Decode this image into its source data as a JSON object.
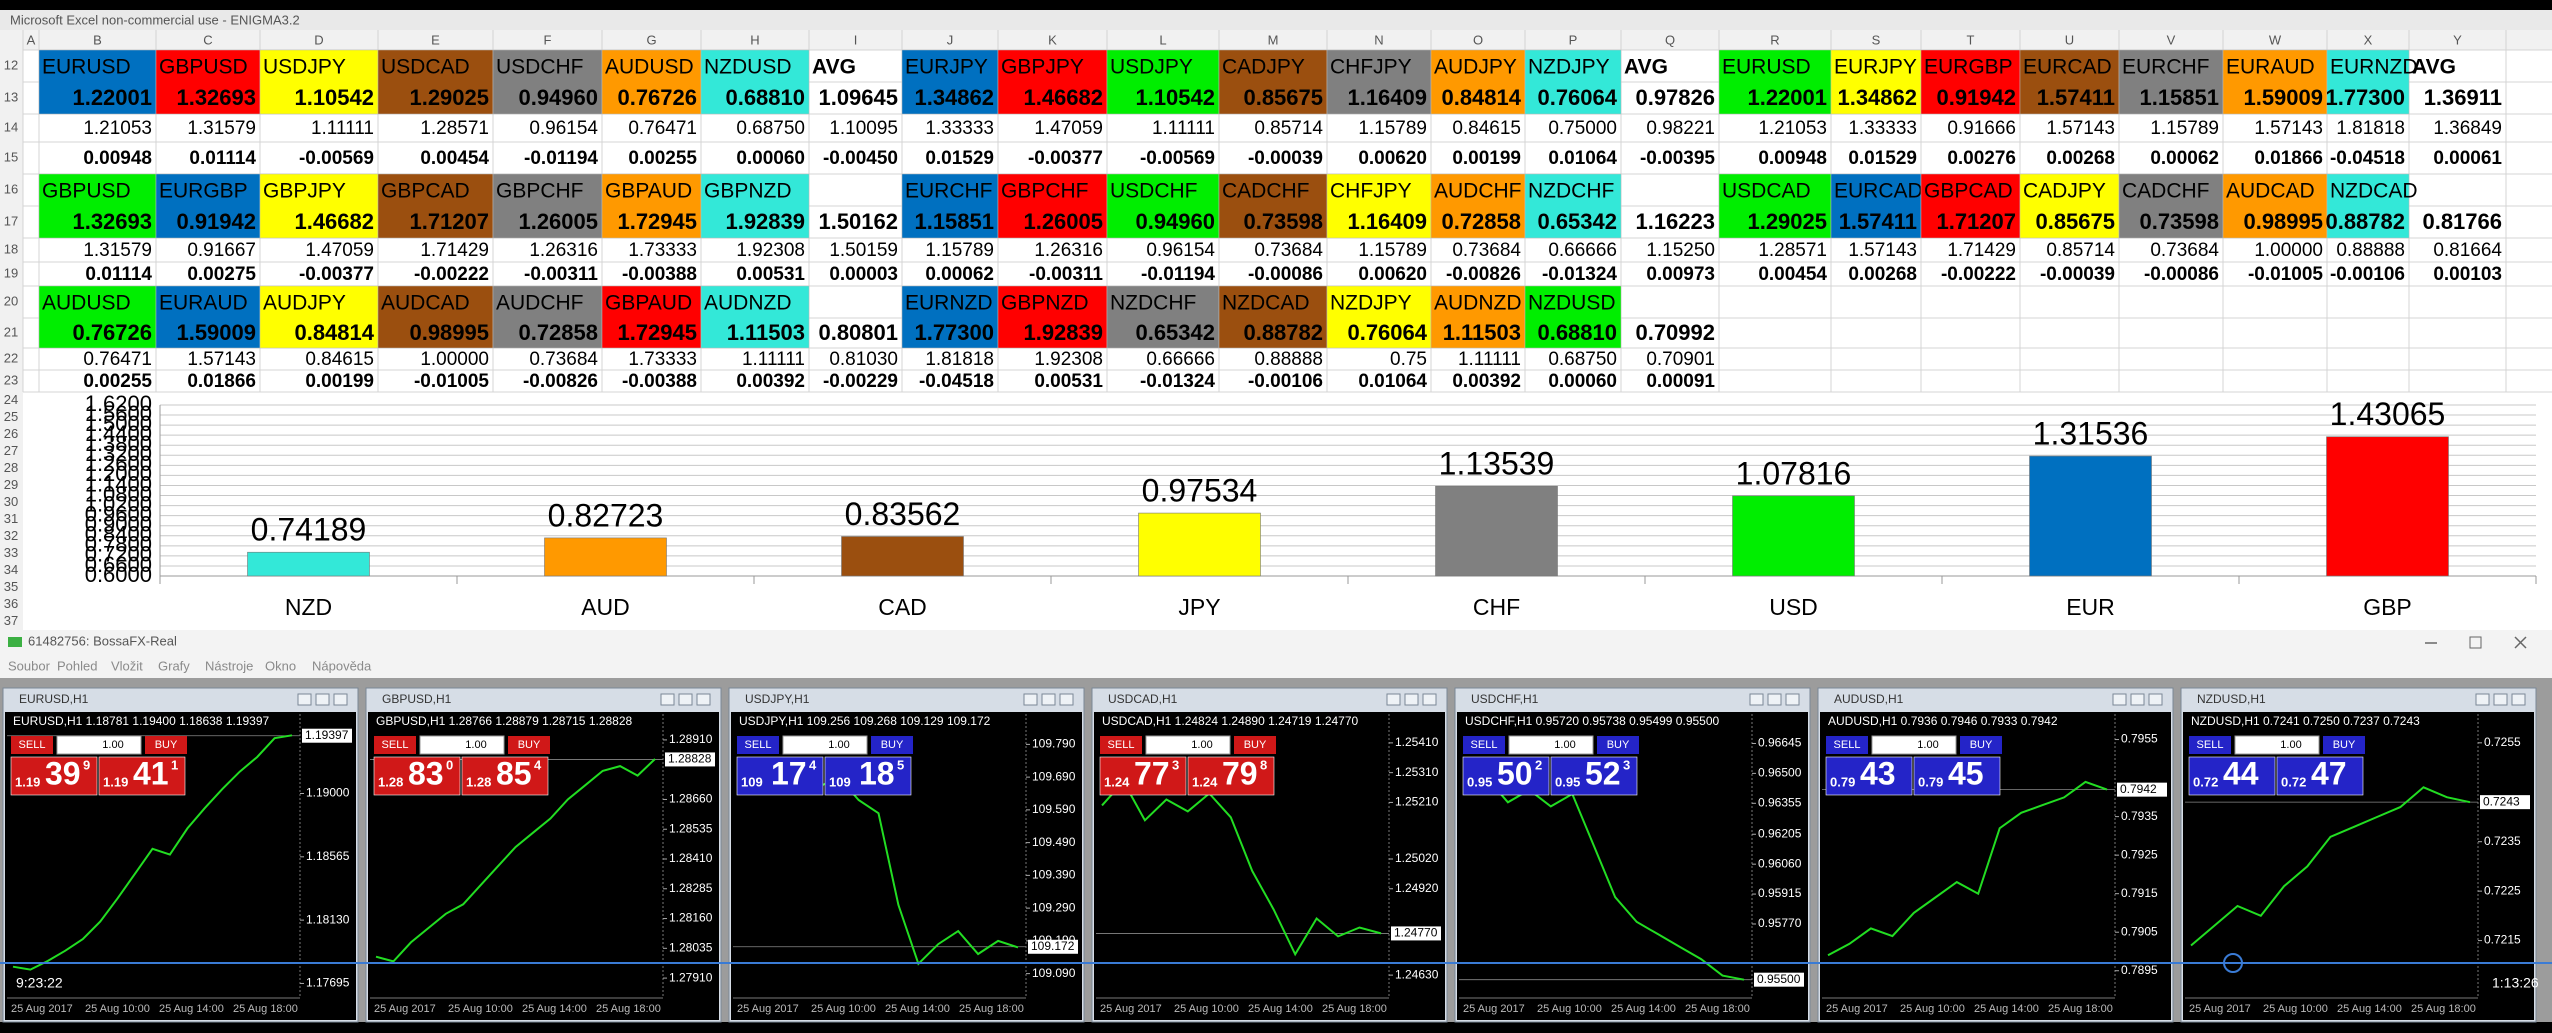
{
  "excel": {
    "title": "Microsoft Excel non-commercial use - ENIGMA3.2",
    "columns": [
      "A",
      "B",
      "C",
      "D",
      "E",
      "F",
      "G",
      "H",
      "I",
      "J",
      "K",
      "L",
      "M",
      "N",
      "O",
      "P",
      "Q",
      "R",
      "S",
      "T",
      "U",
      "V",
      "W",
      "X",
      "Y"
    ],
    "rows": [
      12,
      13,
      14,
      15,
      16,
      17,
      18,
      19,
      20,
      21,
      22,
      23,
      24,
      25,
      26,
      27,
      28,
      29,
      30,
      31,
      32,
      33,
      34,
      35,
      36,
      37
    ],
    "blocks": [
      {
        "pairs": [
          "EURUSD",
          "GBPUSD",
          "USDJPY",
          "USDCAD",
          "USDCHF",
          "AUDUSD",
          "NZDUSD"
        ],
        "colors": [
          "#0070c0",
          "#ff0000",
          "#ffff00",
          "#9b4f0f",
          "#808080",
          "#ff9900",
          "#33e8d8"
        ],
        "avg": "AVG",
        "rows": [
          [
            "1.22001",
            "1.32693",
            "1.10542",
            "1.29025",
            "0.94960",
            "0.76726",
            "0.68810",
            "1.09645"
          ],
          [
            "1.21053",
            "1.31579",
            "1.11111",
            "1.28571",
            "0.96154",
            "0.76471",
            "0.68750",
            "1.10095"
          ],
          [
            "0.00948",
            "0.01114",
            "-0.00569",
            "0.00454",
            "-0.01194",
            "0.00255",
            "0.00060",
            "-0.00450"
          ]
        ]
      },
      {
        "pairs": [
          "EURJPY",
          "GBPJPY",
          "USDJPY",
          "CADJPY",
          "CHFJPY",
          "AUDJPY",
          "NZDJPY"
        ],
        "colors": [
          "#0070c0",
          "#ff0000",
          "#00ee00",
          "#9b4f0f",
          "#808080",
          "#ff9900",
          "#33e8d8"
        ],
        "avg": "AVG",
        "rows": [
          [
            "1.34862",
            "1.46682",
            "1.10542",
            "0.85675",
            "1.16409",
            "0.84814",
            "0.76064",
            "0.97826"
          ],
          [
            "1.33333",
            "1.47059",
            "1.11111",
            "0.85714",
            "1.15789",
            "0.84615",
            "0.75000",
            "0.98221"
          ],
          [
            "0.01529",
            "-0.00377",
            "-0.00569",
            "-0.00039",
            "0.00620",
            "0.00199",
            "0.01064",
            "-0.00395"
          ]
        ]
      },
      {
        "pairs": [
          "EURUSD",
          "EURJPY",
          "EURGBP",
          "EURCAD",
          "EURCHF",
          "EURAUD",
          "EURNZD"
        ],
        "colors": [
          "#00ee00",
          "#ffff00",
          "#ff0000",
          "#9b4f0f",
          "#808080",
          "#ff9900",
          "#33e8d8"
        ],
        "avg": "AVG",
        "rows": [
          [
            "1.22001",
            "1.34862",
            "0.91942",
            "1.57411",
            "1.15851",
            "1.59009",
            "1.77300",
            "1.36911"
          ],
          [
            "1.21053",
            "1.33333",
            "0.91666",
            "1.57143",
            "1.15789",
            "1.57143",
            "1.81818",
            "1.36849"
          ],
          [
            "0.00948",
            "0.01529",
            "0.00276",
            "0.00268",
            "0.00062",
            "0.01866",
            "-0.04518",
            "0.00061"
          ]
        ]
      },
      {
        "pairs": [
          "GBPUSD",
          "EURGBP",
          "GBPJPY",
          "GBPCAD",
          "GBPCHF",
          "GBPAUD",
          "GBPNZD"
        ],
        "colors": [
          "#00ee00",
          "#0070c0",
          "#ffff00",
          "#9b4f0f",
          "#808080",
          "#ff9900",
          "#33e8d8"
        ],
        "rows": [
          [
            "1.32693",
            "0.91942",
            "1.46682",
            "1.71207",
            "1.26005",
            "1.72945",
            "1.92839",
            "1.50162"
          ],
          [
            "1.31579",
            "0.91667",
            "1.47059",
            "1.71429",
            "1.26316",
            "1.73333",
            "1.92308",
            "1.50159"
          ],
          [
            "0.01114",
            "0.00275",
            "-0.00377",
            "-0.00222",
            "-0.00311",
            "-0.00388",
            "0.00531",
            "0.00003"
          ]
        ]
      },
      {
        "pairs": [
          "EURCHF",
          "GBPCHF",
          "USDCHF",
          "CADCHF",
          "CHFJPY",
          "AUDCHF",
          "NZDCHF"
        ],
        "colors": [
          "#0070c0",
          "#ff0000",
          "#00ee00",
          "#9b4f0f",
          "#ffff00",
          "#ff9900",
          "#33e8d8"
        ],
        "rows": [
          [
            "1.15851",
            "1.26005",
            "0.94960",
            "0.73598",
            "1.16409",
            "0.72858",
            "0.65342",
            "1.16223"
          ],
          [
            "1.15789",
            "1.26316",
            "0.96154",
            "0.73684",
            "1.15789",
            "0.73684",
            "0.66666",
            "1.15250"
          ],
          [
            "0.00062",
            "-0.00311",
            "-0.01194",
            "-0.00086",
            "0.00620",
            "-0.00826",
            "-0.01324",
            "0.00973"
          ]
        ]
      },
      {
        "pairs": [
          "USDCAD",
          "EURCAD",
          "GBPCAD",
          "CADJPY",
          "CADCHF",
          "AUDCAD",
          "NZDCAD"
        ],
        "colors": [
          "#00ee00",
          "#0070c0",
          "#ff0000",
          "#ffff00",
          "#808080",
          "#ff9900",
          "#33e8d8"
        ],
        "rows": [
          [
            "1.29025",
            "1.57411",
            "1.71207",
            "0.85675",
            "0.73598",
            "0.98995",
            "0.88782",
            "0.81766"
          ],
          [
            "1.28571",
            "1.57143",
            "1.71429",
            "0.85714",
            "0.73684",
            "1.00000",
            "0.88888",
            "0.81664"
          ],
          [
            "0.00454",
            "0.00268",
            "-0.00222",
            "-0.00039",
            "-0.00086",
            "-0.01005",
            "-0.00106",
            "0.00103"
          ]
        ]
      },
      {
        "pairs": [
          "AUDUSD",
          "EURAUD",
          "AUDJPY",
          "AUDCAD",
          "AUDCHF",
          "GBPAUD",
          "AUDNZD"
        ],
        "colors": [
          "#00ee00",
          "#0070c0",
          "#ffff00",
          "#9b4f0f",
          "#808080",
          "#ff0000",
          "#33e8d8"
        ],
        "rows": [
          [
            "0.76726",
            "1.59009",
            "0.84814",
            "0.98995",
            "0.72858",
            "1.72945",
            "1.11503",
            "0.80801"
          ],
          [
            "0.76471",
            "1.57143",
            "0.84615",
            "1.00000",
            "0.73684",
            "1.73333",
            "1.11111",
            "0.81030"
          ],
          [
            "0.00255",
            "0.01866",
            "0.00199",
            "-0.01005",
            "-0.00826",
            "-0.00388",
            "0.00392",
            "-0.00229"
          ]
        ]
      },
      {
        "pairs": [
          "EURNZD",
          "GBPNZD",
          "NZDCHF",
          "NZDCAD",
          "NZDJPY",
          "AUDNZD",
          "NZDUSD"
        ],
        "colors": [
          "#0070c0",
          "#ff0000",
          "#808080",
          "#9b4f0f",
          "#ffff00",
          "#ff9900",
          "#00ee00"
        ],
        "rows": [
          [
            "1.77300",
            "1.92839",
            "0.65342",
            "0.88782",
            "0.76064",
            "1.11503",
            "0.68810",
            "0.70992"
          ],
          [
            "1.81818",
            "1.92308",
            "0.66666",
            "0.88888",
            "0.75",
            "1.11111",
            "0.68750",
            "0.70901"
          ],
          [
            "-0.04518",
            "0.00531",
            "-0.01324",
            "-0.00106",
            "0.01064",
            "0.00392",
            "0.00060",
            "0.00091"
          ]
        ]
      }
    ]
  },
  "chart_data": {
    "type": "bar",
    "categories": [
      "NZD",
      "AUD",
      "CAD",
      "JPY",
      "CHF",
      "USD",
      "EUR",
      "GBP"
    ],
    "values": [
      0.74189,
      0.82723,
      0.83562,
      0.97534,
      1.13539,
      1.07816,
      1.31536,
      1.43065
    ],
    "colors": [
      "#33e8d8",
      "#ff9900",
      "#9b4f0f",
      "#ffff00",
      "#808080",
      "#00ee00",
      "#0070c0",
      "#ff0000"
    ],
    "ylim": [
      0.6,
      1.62
    ],
    "yticks": [
      {
        "value": 0.6,
        "label": "0.6000"
      },
      {
        "value": 0.66,
        "label": "0.6600"
      },
      {
        "value": 0.72,
        "label": "0.7200"
      },
      {
        "value": 0.78,
        "label": "0.7800"
      },
      {
        "value": 0.84,
        "label": "0.8400"
      },
      {
        "value": 0.9,
        "label": "0.9000"
      },
      {
        "value": 0.96,
        "label": "0.9600"
      },
      {
        "value": 1.02,
        "label": "1.0200"
      },
      {
        "value": 1.08,
        "label": "1.0800"
      },
      {
        "value": 1.14,
        "label": "1.1400"
      },
      {
        "value": 1.2,
        "label": "1.2000"
      },
      {
        "value": 1.26,
        "label": "1.2600"
      },
      {
        "value": 1.32,
        "label": "1.3200"
      },
      {
        "value": 1.38,
        "label": "1.3800"
      },
      {
        "value": 1.44,
        "label": "1.4400"
      },
      {
        "value": 1.5,
        "label": "1.5000"
      },
      {
        "value": 1.56,
        "label": "1.5600"
      },
      {
        "value": 1.62,
        "label": "1.6200"
      }
    ],
    "grid": true
  },
  "terminal": {
    "title": "61482756: BossaFX-Real",
    "menu": [
      "Soubor",
      "Pohled",
      "Vložit",
      "Grafy",
      "Nástroje",
      "Okno",
      "Nápověda"
    ],
    "overlay_left": "9:23:22",
    "overlay_right": "1:13:26",
    "windows": [
      {
        "title": "EURUSD,H1",
        "info": "EURUSD,H1 1.18781 1.19400 1.18638 1.19397",
        "sell": "SELL",
        "lot": "1.00",
        "buy": "BUY",
        "panel_color": "#d01818",
        "bid": [
          "1.19",
          "39",
          "9"
        ],
        "ask": [
          "1.19",
          "41",
          "1"
        ],
        "ylim": [
          1.1765,
          1.1945
        ],
        "yticks": [
          {
            "value": 1.19,
            "label": "1.19000"
          },
          1.18565,
          {
            "value": 1.1813,
            "label": "1.18130"
          },
          1.17695
        ],
        "current": 1.19397,
        "closes": [
          1.1781,
          1.1779,
          1.1785,
          1.1792,
          1.18,
          1.1812,
          1.1828,
          1.1845,
          1.1862,
          1.1858,
          1.1876,
          1.189,
          1.1903,
          1.1915,
          1.1925,
          1.1938,
          1.194
        ],
        "xticks": [
          "25 Aug 2017",
          "25 Aug 10:00",
          "25 Aug 14:00",
          "25 Aug 18:00"
        ]
      },
      {
        "title": "GBPUSD,H1",
        "info": "GBPUSD,H1 1.28766 1.28879 1.28715 1.28828",
        "sell": "SELL",
        "lot": "1.00",
        "buy": "BUY",
        "panel_color": "#d01818",
        "bid": [
          "1.28",
          "83",
          "0"
        ],
        "ask": [
          "1.28",
          "85",
          "4"
        ],
        "ylim": [
          1.2786,
          1.2896
        ],
        "yticks": [
          {
            "value": 1.2891,
            "label": "1.28910"
          },
          {
            "value": 1.2866,
            "label": "1.28660"
          },
          1.28535,
          {
            "value": 1.2841,
            "label": "1.28410"
          },
          1.28285,
          {
            "value": 1.2816,
            "label": "1.28160"
          },
          1.28035,
          {
            "value": 1.2791,
            "label": "1.27910"
          }
        ],
        "current": 1.28828,
        "closes": [
          1.28,
          1.2798,
          1.2806,
          1.2812,
          1.2818,
          1.2822,
          1.283,
          1.2838,
          1.2846,
          1.2852,
          1.2858,
          1.2866,
          1.2872,
          1.2878,
          1.288,
          1.2876,
          1.2883
        ],
        "xticks": [
          "25 Aug 2017",
          "25 Aug 10:00",
          "25 Aug 14:00",
          "25 Aug 18:00"
        ]
      },
      {
        "title": "USDJPY,H1",
        "info": "USDJPY,H1 109.256 109.268 109.129 109.172",
        "sell": "SELL",
        "lot": "1.00",
        "buy": "BUY",
        "panel_color": "#2424c8",
        "bid": [
          "109",
          "17",
          "4"
        ],
        "ask": [
          "109",
          "18",
          "5"
        ],
        "ylim": [
          109.04,
          109.84
        ],
        "yticks": [
          {
            "value": 109.79,
            "label": "109.790"
          },
          {
            "value": 109.69,
            "label": "109.690"
          },
          {
            "value": 109.59,
            "label": "109.590"
          },
          {
            "value": 109.49,
            "label": "109.490"
          },
          {
            "value": 109.39,
            "label": "109.390"
          },
          {
            "value": 109.29,
            "label": "109.290"
          },
          {
            "value": 109.19,
            "label": "109.190"
          },
          {
            "value": 109.09,
            "label": "109.090"
          }
        ],
        "current": 109.172,
        "closes": [
          109.7,
          109.74,
          109.68,
          109.71,
          109.66,
          109.69,
          109.62,
          109.58,
          109.3,
          109.12,
          109.18,
          109.22,
          109.15,
          109.19,
          109.17
        ],
        "xticks": [
          "25 Aug 2017",
          "25 Aug 10:00",
          "25 Aug 14:00",
          "25 Aug 18:00"
        ]
      },
      {
        "title": "USDCAD,H1",
        "info": "USDCAD,H1 1.24824 1.24890 1.24719 1.24770",
        "sell": "SELL",
        "lot": "1.00",
        "buy": "BUY",
        "panel_color": "#d01818",
        "bid": [
          "1.24",
          "77",
          "3"
        ],
        "ask": [
          "1.24",
          "79",
          "8"
        ],
        "ylim": [
          1.2458,
          1.2546
        ],
        "yticks": [
          {
            "value": 1.2541,
            "label": "1.25410"
          },
          {
            "value": 1.2531,
            "label": "1.25310"
          },
          {
            "value": 1.2521,
            "label": "1.25210"
          },
          {
            "value": 1.2502,
            "label": "1.25020"
          },
          {
            "value": 1.2492,
            "label": "1.24920"
          },
          {
            "value": 1.2463,
            "label": "1.24630"
          }
        ],
        "current": {
          "value": 1.2477,
          "label": "1.24770"
        },
        "closes": [
          1.252,
          1.2528,
          1.2515,
          1.2522,
          1.2518,
          1.2524,
          1.2516,
          1.2498,
          1.2485,
          1.247,
          1.2482,
          1.2476,
          1.2479,
          1.2477
        ],
        "xticks": [
          "25 Aug 2017",
          "25 Aug 10:00",
          "25 Aug 14:00",
          "25 Aug 18:00"
        ]
      },
      {
        "title": "USDCHF,H1",
        "info": "USDCHF,H1 0.95720 0.95738 0.95499 0.95500",
        "sell": "SELL",
        "lot": "1.00",
        "buy": "BUY",
        "panel_color": "#2424c8",
        "bid": [
          "0.95",
          "50",
          "2"
        ],
        "ask": [
          "0.95",
          "52",
          "3"
        ],
        "ylim": [
          0.9545,
          0.9672
        ],
        "yticks": [
          0.96645,
          {
            "value": 0.965,
            "label": "0.96500"
          },
          0.96355,
          0.96205,
          {
            "value": 0.9606,
            "label": "0.96060"
          },
          0.95915,
          {
            "value": 0.9577,
            "label": "0.95770"
          }
        ],
        "current": {
          "value": 0.955,
          "label": "0.95500"
        },
        "closes": [
          0.964,
          0.9648,
          0.9636,
          0.9642,
          0.9634,
          0.964,
          0.9615,
          0.959,
          0.9578,
          0.9572,
          0.9566,
          0.956,
          0.9552,
          0.955
        ],
        "xticks": [
          "25 Aug 2017",
          "25 Aug 10:00",
          "25 Aug 14:00",
          "25 Aug 18:00"
        ]
      },
      {
        "title": "AUDUSD,H1",
        "info": "AUDUSD,H1 0.7936 0.7946 0.7933 0.7942",
        "sell": "SELL",
        "lot": "1.00",
        "buy": "BUY",
        "panel_color": "#2424c8",
        "bid": [
          "0.79",
          "43"
        ],
        "ask": [
          "0.79",
          "45"
        ],
        "ylim": [
          0.789,
          0.7958
        ],
        "yticks": [
          0.7955,
          0.7935,
          0.7925,
          0.7915,
          0.7905,
          0.7895
        ],
        "current": 0.7942,
        "closes": [
          0.7899,
          0.7902,
          0.7906,
          0.7904,
          0.791,
          0.7914,
          0.7918,
          0.7915,
          0.7932,
          0.7936,
          0.7938,
          0.794,
          0.7944,
          0.7942
        ],
        "xticks": [
          "25 Aug 2017",
          "25 Aug 10:00",
          "25 Aug 14:00",
          "25 Aug 18:00"
        ]
      },
      {
        "title": "NZDUSD,H1",
        "info": "NZDUSD,H1 0.7241 0.7250 0.7237 0.7243",
        "sell": "SELL",
        "lot": "1.00",
        "buy": "BUY",
        "panel_color": "#2424c8",
        "bid": [
          "0.72",
          "44"
        ],
        "ask": [
          "0.72",
          "47"
        ],
        "ylim": [
          0.7205,
          0.7258
        ],
        "yticks": [
          0.7255,
          0.7235,
          0.7225,
          0.7215
        ],
        "current": 0.7243,
        "closes": [
          0.7214,
          0.7218,
          0.7222,
          0.722,
          0.7226,
          0.723,
          0.7236,
          0.7238,
          0.724,
          0.7242,
          0.7246,
          0.7244,
          0.7243
        ],
        "xticks": [
          "25 Aug 2017",
          "25 Aug 10:00",
          "25 Aug 14:00",
          "25 Aug 18:00"
        ]
      }
    ]
  }
}
